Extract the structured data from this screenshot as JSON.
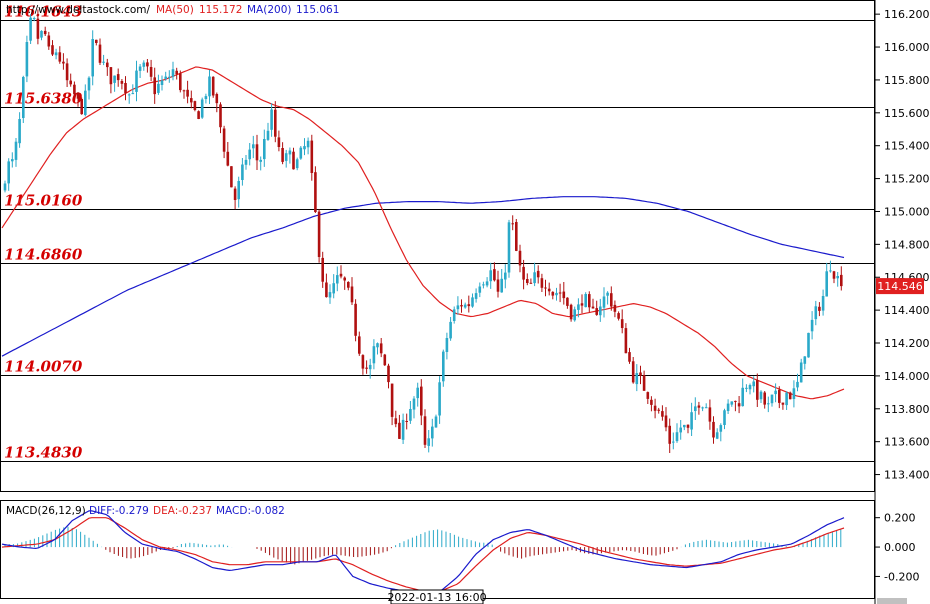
{
  "header": {
    "site_url": "http://www.deltastock.com/",
    "ma50_label": "MA(50)",
    "ma50_value": "115.172",
    "ma200_label": "MA(200)",
    "ma200_value": "115.061"
  },
  "colors": {
    "bull": "#2aa9c9",
    "bear": "#b01010",
    "ma50": "#e02020",
    "ma200": "#1a1acc",
    "level_text": "#d40000",
    "price_badge": "#e02020",
    "macd_diff": "#1a1acc",
    "macd_dea": "#e02020",
    "macd_pos_hist": "#2aa9c9",
    "macd_neg_hist": "#a01010"
  },
  "price_badge": "114.546",
  "time_label": "2022-01-13 16:00",
  "macd_header": {
    "title": "MACD(26,12,9)",
    "diff": "DIFF:-0.279",
    "dea": "DEA:-0.237",
    "macd": "MACD:-0.082"
  },
  "chart_data": [
    {
      "type": "candlestick",
      "ylim": [
        113.3,
        116.28
      ],
      "y_ticks": [
        "116.200",
        "116.000",
        "115.800",
        "115.600",
        "115.400",
        "115.200",
        "115.000",
        "114.800",
        "114.600",
        "114.400",
        "114.200",
        "114.000",
        "113.800",
        "113.600",
        "113.400"
      ],
      "levels": [
        {
          "label": "116.1643",
          "value": 116.1643
        },
        {
          "label": "115.6380",
          "value": 115.638
        },
        {
          "label": "115.0160",
          "value": 115.016
        },
        {
          "label": "114.6860",
          "value": 114.686
        },
        {
          "label": "114.0070",
          "value": 114.007
        },
        {
          "label": "113.4830",
          "value": 113.483
        }
      ],
      "last_price": 114.546,
      "price_path": [
        115.12,
        115.28,
        115.3,
        115.55,
        115.95,
        116.2,
        116.05,
        116.1,
        115.92,
        115.98,
        115.88,
        115.75,
        115.7,
        115.62,
        115.72,
        116.05,
        115.95,
        115.86,
        115.8,
        115.83,
        115.78,
        115.7,
        115.82,
        115.88,
        115.84,
        115.74,
        115.78,
        115.8,
        115.86,
        115.78,
        115.7,
        115.62,
        115.58,
        115.7,
        115.78,
        115.66,
        115.46,
        115.26,
        115.06,
        115.2,
        115.34,
        115.4,
        115.28,
        115.44,
        115.6,
        115.38,
        115.3,
        115.34,
        115.28,
        115.36,
        115.42,
        115.06,
        114.7,
        114.45,
        114.52,
        114.6,
        114.56,
        114.45,
        114.22,
        114.08,
        114.02,
        114.2,
        114.12,
        114.02,
        113.7,
        113.62,
        113.75,
        113.85,
        113.9,
        113.56,
        113.6,
        113.82,
        114.1,
        114.3,
        114.4,
        114.44,
        114.42,
        114.5,
        114.58,
        114.6,
        114.64,
        114.5,
        114.58,
        115.0,
        114.75,
        114.58,
        114.52,
        114.6,
        114.56,
        114.58,
        114.5,
        114.52,
        114.46,
        114.38,
        114.4,
        114.5,
        114.36,
        114.4,
        114.46,
        114.5,
        114.4,
        114.3,
        114.15,
        114.0,
        113.98,
        113.92,
        113.86,
        113.78,
        113.74,
        113.6,
        113.64,
        113.7,
        113.66,
        113.8,
        113.86,
        113.82,
        113.66,
        113.7,
        113.76,
        113.86,
        113.82,
        113.92,
        113.98,
        113.9,
        113.86,
        113.8,
        113.88,
        113.84,
        113.9,
        113.88,
        113.96,
        114.15,
        114.3,
        114.4,
        114.48,
        114.7,
        114.62,
        114.55
      ],
      "ma50_path": [
        114.9,
        115.05,
        115.2,
        115.35,
        115.48,
        115.56,
        115.62,
        115.68,
        115.74,
        115.78,
        115.8,
        115.84,
        115.88,
        115.86,
        115.8,
        115.74,
        115.68,
        115.64,
        115.62,
        115.56,
        115.48,
        115.4,
        115.3,
        115.12,
        114.9,
        114.7,
        114.55,
        114.45,
        114.38,
        114.36,
        114.38,
        114.42,
        114.46,
        114.44,
        114.38,
        114.36,
        114.38,
        114.4,
        114.42,
        114.44,
        114.42,
        114.38,
        114.32,
        114.26,
        114.18,
        114.08,
        114.0,
        113.96,
        113.92,
        113.88,
        113.86,
        113.88,
        113.92
      ],
      "ma200_path": [
        114.12,
        114.22,
        114.32,
        114.42,
        114.52,
        114.6,
        114.68,
        114.76,
        114.84,
        114.9,
        114.97,
        115.02,
        115.05,
        115.06,
        115.06,
        115.05,
        115.06,
        115.08,
        115.09,
        115.09,
        115.08,
        115.05,
        115.0,
        114.93,
        114.86,
        114.8,
        114.76,
        114.72
      ]
    },
    {
      "type": "line",
      "title": "MACD(26,12,9)",
      "ylim": [
        -0.34,
        0.3
      ],
      "y_ticks": [
        "0.200",
        "0.000",
        "-0.200"
      ],
      "series": [
        {
          "name": "DIFF",
          "values": [
            0.02,
            0.0,
            -0.01,
            0.05,
            0.18,
            0.25,
            0.22,
            0.1,
            0.02,
            -0.01,
            -0.03,
            -0.08,
            -0.14,
            -0.16,
            -0.14,
            -0.12,
            -0.12,
            -0.1,
            -0.1,
            -0.05,
            -0.2,
            -0.25,
            -0.28,
            -0.3,
            -0.32,
            -0.3,
            -0.2,
            -0.05,
            0.05,
            0.1,
            0.12,
            0.08,
            0.03,
            -0.02,
            -0.05,
            -0.08,
            -0.1,
            -0.12,
            -0.13,
            -0.14,
            -0.12,
            -0.1,
            -0.05,
            -0.02,
            0.0,
            0.02,
            0.08,
            0.15,
            0.2
          ]
        },
        {
          "name": "DEA",
          "values": [
            0.0,
            0.01,
            0.02,
            0.05,
            0.12,
            0.2,
            0.2,
            0.13,
            0.05,
            0.0,
            -0.02,
            -0.05,
            -0.1,
            -0.12,
            -0.12,
            -0.1,
            -0.1,
            -0.1,
            -0.1,
            -0.08,
            -0.12,
            -0.18,
            -0.23,
            -0.27,
            -0.3,
            -0.3,
            -0.25,
            -0.13,
            -0.02,
            0.06,
            0.1,
            0.08,
            0.05,
            0.02,
            -0.02,
            -0.05,
            -0.08,
            -0.1,
            -0.12,
            -0.13,
            -0.12,
            -0.11,
            -0.08,
            -0.05,
            -0.02,
            0.0,
            0.04,
            0.09,
            0.13
          ]
        }
      ],
      "histogram": [
        0.02,
        0.02,
        0.04,
        0.06,
        0.09,
        0.12,
        0.14,
        0.12,
        0.07,
        0.02,
        -0.03,
        -0.06,
        -0.08,
        -0.07,
        -0.05,
        -0.02,
        -0.02,
        0.02,
        0.03,
        0.02,
        0.01,
        0.02,
        0.0,
        0.0,
        0.0,
        -0.03,
        -0.07,
        -0.1,
        -0.12,
        -0.1,
        -0.08,
        -0.06,
        -0.05,
        -0.06,
        -0.07,
        -0.06,
        -0.05,
        -0.03,
        0.02,
        0.05,
        0.08,
        0.11,
        0.12,
        0.1,
        0.07,
        0.05,
        0.03,
        0.03,
        -0.03,
        -0.06,
        -0.08,
        -0.06,
        -0.05,
        -0.04,
        -0.03,
        -0.02,
        -0.04,
        -0.05,
        -0.04,
        -0.03,
        -0.02,
        -0.03,
        -0.05,
        -0.06,
        -0.04,
        -0.02,
        0.02,
        0.04,
        0.05,
        0.04,
        0.03,
        0.04,
        0.05,
        0.04,
        0.03,
        0.02,
        0.0,
        0.02,
        0.05,
        0.08,
        0.1,
        0.12
      ]
    }
  ]
}
